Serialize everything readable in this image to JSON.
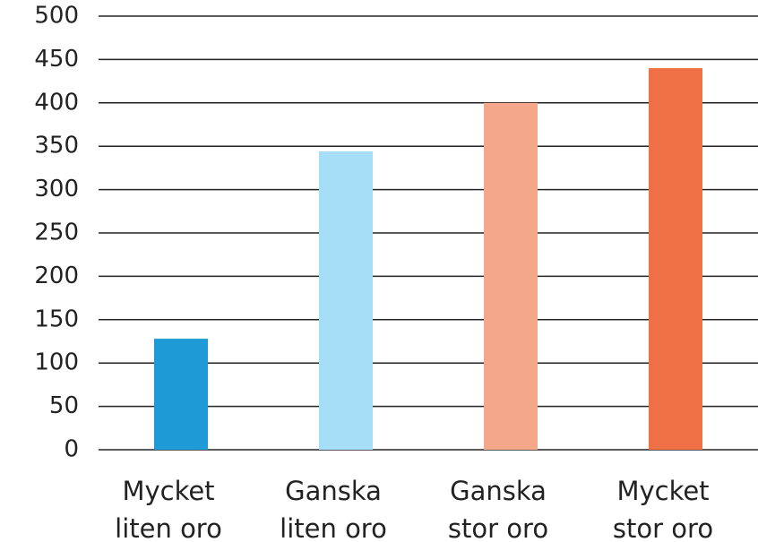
{
  "chart_data": {
    "type": "bar",
    "categories": [
      "Mycket\nliten oro",
      "Ganska\nliten oro",
      "Ganska\nstor oro",
      "Mycket\nstor oro"
    ],
    "values": [
      128,
      344,
      400,
      440
    ],
    "colors": [
      "#1e9bd7",
      "#a6ddf7",
      "#f5a78a",
      "#f07046"
    ],
    "ylim": [
      0,
      500
    ],
    "yticks": [
      0,
      50,
      100,
      150,
      200,
      250,
      300,
      350,
      400,
      450,
      500
    ],
    "grid": true
  }
}
